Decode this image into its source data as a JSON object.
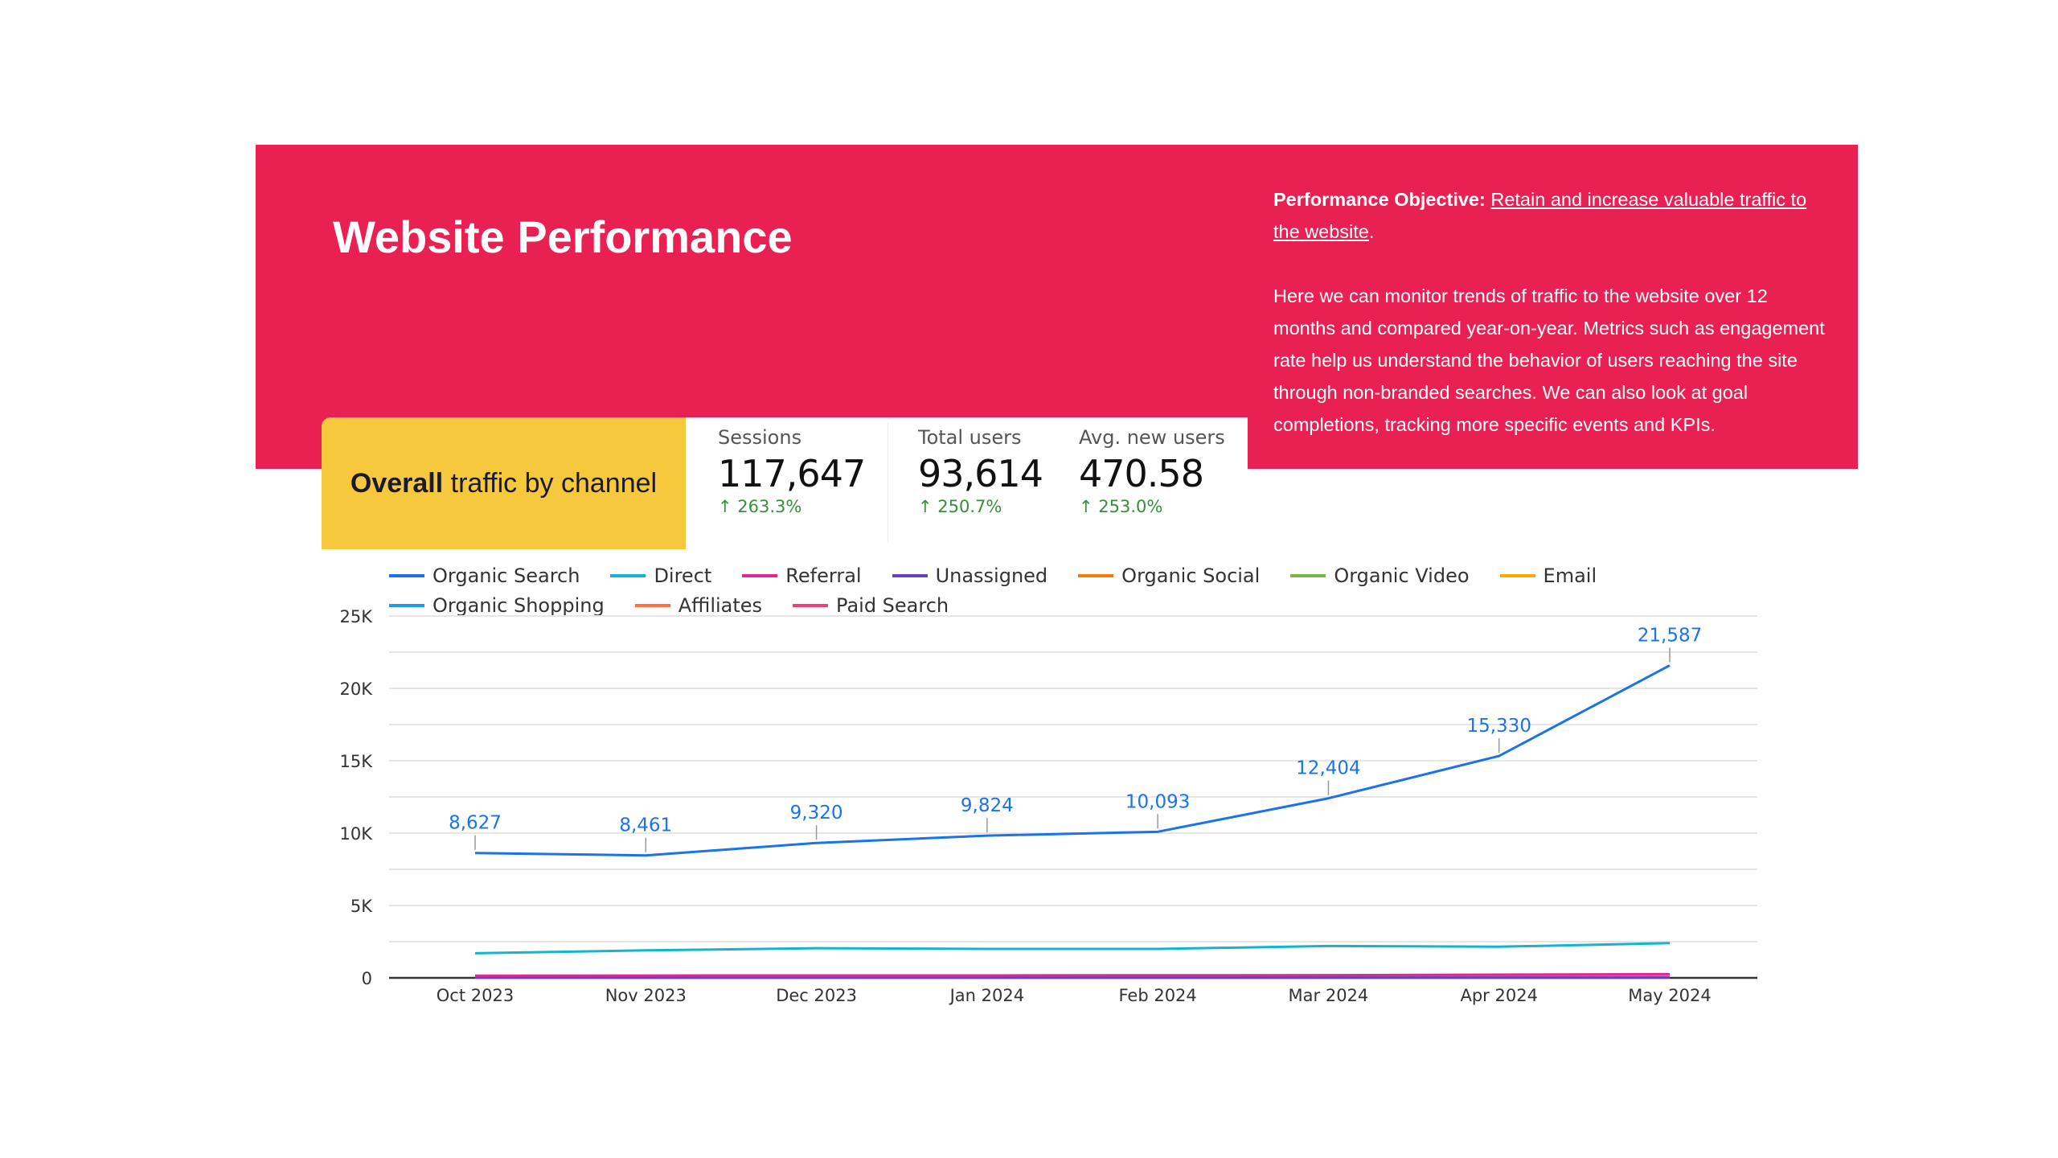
{
  "header": {
    "title": "Website Performance",
    "objective_label": "Performance Objective:",
    "objective_link": "Retain and increase valuable traffic to the website",
    "objective_end": ".",
    "description": "Here we can monitor trends of traffic to the website over 12 months and compared year-on-year. Metrics such as engagement rate help us understand the behavior of users reaching the site through non-branded searches. We can also look at goal completions, tracking more specific events and KPIs.",
    "banner_color": "#e92153"
  },
  "section": {
    "title_bold": "Overall",
    "title_rest": " traffic by channel"
  },
  "stats": [
    {
      "label": "Sessions",
      "value": "117,647",
      "change": "263.3%",
      "direction": "up"
    },
    {
      "label": "Total users",
      "value": "93,614",
      "change": "250.7%",
      "direction": "up"
    },
    {
      "label": "Avg. new users",
      "value": "470.58",
      "change": "253.0%",
      "direction": "up"
    }
  ],
  "chart_data": {
    "type": "line",
    "categories": [
      "Oct 2023",
      "Nov 2023",
      "Dec 2023",
      "Jan 2024",
      "Feb 2024",
      "Mar 2024",
      "Apr 2024",
      "May 2024"
    ],
    "ylim": [
      0,
      25000
    ],
    "yticks": [
      {
        "v": 0,
        "label": "0"
      },
      {
        "v": 5000,
        "label": "5K"
      },
      {
        "v": 10000,
        "label": "10K"
      },
      {
        "v": 15000,
        "label": "15K"
      },
      {
        "v": 20000,
        "label": "20K"
      },
      {
        "v": 25000,
        "label": "25K"
      }
    ],
    "grid": true,
    "legend": "top",
    "series": [
      {
        "name": "Organic Search",
        "color": "#1a73e8",
        "values": [
          8627,
          8461,
          9320,
          9824,
          10093,
          12404,
          15330,
          21587
        ],
        "labels": [
          "8,627",
          "8,461",
          "9,320",
          "9,824",
          "10,093",
          "12,404",
          "15,330",
          "21,587"
        ]
      },
      {
        "name": "Direct",
        "color": "#12b5cb",
        "values": [
          1700,
          1900,
          2050,
          2000,
          2000,
          2200,
          2150,
          2400
        ]
      },
      {
        "name": "Referral",
        "color": "#e52592",
        "values": [
          150,
          160,
          170,
          170,
          180,
          190,
          220,
          260
        ]
      },
      {
        "name": "Unassigned",
        "color": "#6a3fc0",
        "values": [
          20,
          20,
          20,
          20,
          20,
          20,
          20,
          20
        ]
      },
      {
        "name": "Organic Social",
        "color": "#f57c00",
        "values": [
          60,
          60,
          40,
          40,
          40,
          70,
          80,
          90
        ]
      },
      {
        "name": "Organic Video",
        "color": "#7cb342",
        "values": [
          20,
          30,
          60,
          60,
          60,
          50,
          40,
          40
        ]
      },
      {
        "name": "Email",
        "color": "#f9ab00",
        "values": [
          30,
          30,
          20,
          20,
          20,
          30,
          30,
          20
        ]
      },
      {
        "name": "Organic Shopping",
        "color": "#1e9be9",
        "values": [
          10,
          20,
          10,
          10,
          10,
          10,
          60,
          80
        ]
      },
      {
        "name": "Affiliates",
        "color": "#ff7043",
        "values": [
          5,
          5,
          5,
          5,
          5,
          5,
          5,
          5
        ]
      },
      {
        "name": "Paid Search",
        "color": "#ec407a",
        "values": [
          0,
          0,
          0,
          0,
          0,
          0,
          0,
          0
        ]
      }
    ]
  }
}
